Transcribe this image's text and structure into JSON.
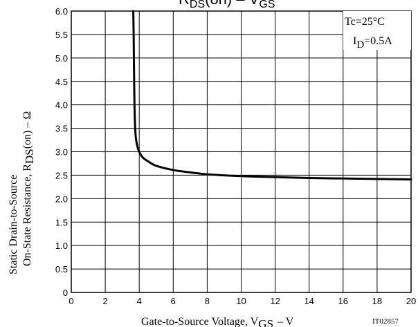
{
  "chart_data": {
    "type": "line",
    "title": {
      "main": "R",
      "main_sub": "DS",
      "mid": "(on) – V",
      "end_sub": "GS"
    },
    "xlabel": {
      "main": "Gate-to-Source Voltage, V",
      "sub": "GS",
      "unit": "– V"
    },
    "ylabel": {
      "line1": "Static Drain-to-Source",
      "line2_main": "On-State Resistance, R",
      "line2_sub": "DS",
      "line2_end": "(on) – Ω"
    },
    "xlim": [
      0,
      20
    ],
    "ylim": [
      0,
      6.0
    ],
    "x_ticks": [
      "0",
      "2",
      "4",
      "6",
      "8",
      "10",
      "12",
      "14",
      "16",
      "18",
      "20"
    ],
    "y_ticks": [
      "0",
      "0.5",
      "1.0",
      "1.5",
      "2.0",
      "2.5",
      "3.0",
      "3.5",
      "4.0",
      "4.5",
      "5.0",
      "5.5",
      "6.0"
    ],
    "grid": true,
    "conditions": {
      "tc": "Tc=25°C",
      "id_main": "I",
      "id_sub": "D",
      "id_value": "=0.5A"
    },
    "figure_id": "IT02857",
    "series": [
      {
        "x": [
          3.65,
          3.67,
          3.7,
          3.72,
          3.75,
          3.8,
          3.9,
          4.0,
          4.2,
          4.5,
          5.0,
          6.0,
          7.0,
          8.0,
          10.0,
          12.0,
          14.0,
          16.0,
          18.0,
          20.0
        ],
        "y": [
          6.0,
          5.5,
          4.5,
          4.0,
          3.6,
          3.3,
          3.1,
          3.0,
          2.88,
          2.8,
          2.7,
          2.61,
          2.56,
          2.52,
          2.48,
          2.46,
          2.44,
          2.43,
          2.42,
          2.41
        ]
      }
    ]
  }
}
